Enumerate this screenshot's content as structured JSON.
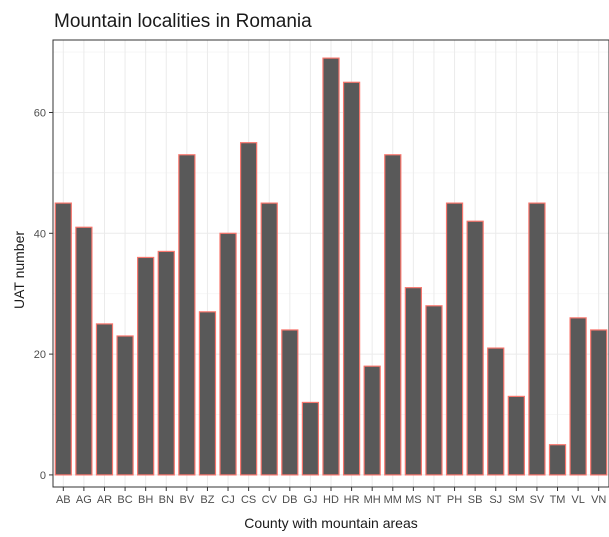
{
  "chart_data": {
    "type": "bar",
    "title": "Mountain localities in Romania",
    "xlabel": "County with mountain areas",
    "ylabel": "UAT number",
    "categories": [
      "AB",
      "AG",
      "AR",
      "BC",
      "BH",
      "BN",
      "BV",
      "BZ",
      "CJ",
      "CS",
      "CV",
      "DB",
      "GJ",
      "HD",
      "HR",
      "MH",
      "MM",
      "MS",
      "NT",
      "PH",
      "SB",
      "SJ",
      "SM",
      "SV",
      "TM",
      "VL",
      "VN"
    ],
    "values": [
      45,
      41,
      25,
      23,
      36,
      37,
      53,
      27,
      40,
      55,
      45,
      24,
      12,
      69,
      65,
      18,
      53,
      31,
      28,
      45,
      42,
      21,
      13,
      45,
      5,
      26,
      24
    ],
    "ylim": [
      -2,
      72
    ],
    "yticks": [
      0,
      20,
      40,
      60
    ],
    "grid": true,
    "bar_fill": "#595959",
    "bar_outline": "#f8766d",
    "panel_border": "#333333",
    "grid_major": "#ebebeb",
    "grid_minor": "#f5f5f5"
  }
}
